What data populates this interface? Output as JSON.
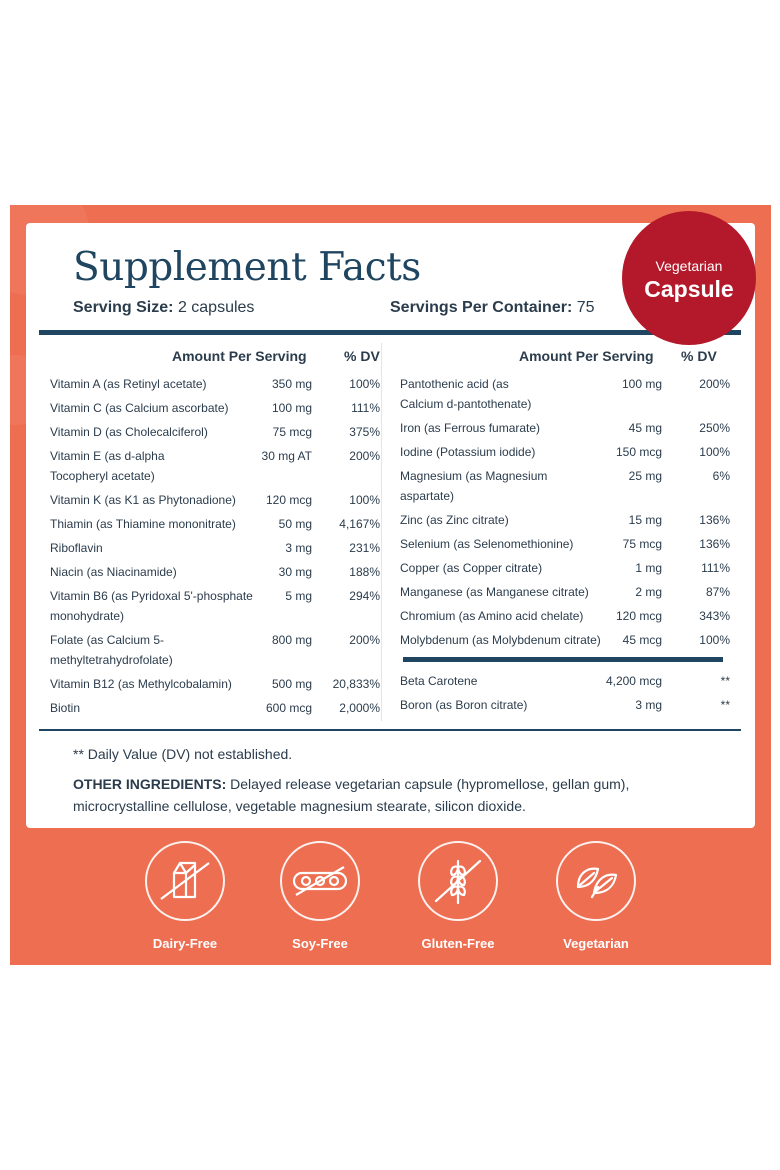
{
  "title": "Supplement Facts",
  "serving_size": {
    "label": "Serving Size:",
    "value": "2 capsules"
  },
  "servings_per_container": {
    "label": "Servings Per Container:",
    "value": "75"
  },
  "badge": {
    "line1": "Vegetarian",
    "line2": "Capsule"
  },
  "headers": {
    "amount": "Amount Per Serving",
    "dv": "% DV"
  },
  "left_rows": [
    {
      "name": "Vitamin A (as Retinyl acetate)",
      "amount": "350 mg",
      "dv": "100%"
    },
    {
      "name": "Vitamin C (as Calcium ascorbate)",
      "amount": "100 mg",
      "dv": "111%"
    },
    {
      "name": "Vitamin D (as Cholecalciferol)",
      "amount": "75 mcg",
      "dv": "375%"
    },
    {
      "name": "Vitamin E (as d-alpha",
      "name2": "Tocopheryl acetate)",
      "amount": "30 mg AT",
      "dv": "200%"
    },
    {
      "name": "Vitamin K (as K1 as Phytonadione)",
      "amount": "120 mcg",
      "dv": "100%"
    },
    {
      "name": "Thiamin (as Thiamine mononitrate)",
      "amount": "50 mg",
      "dv": "4,167%"
    },
    {
      "name": "Riboflavin",
      "amount": "3 mg",
      "dv": "231%"
    },
    {
      "name": "Niacin (as Niacinamide)",
      "amount": "30 mg",
      "dv": "188%"
    },
    {
      "name": "Vitamin B6 (as Pyridoxal 5'-phosphate",
      "name2": "monohydrate)",
      "amount": "5 mg",
      "dv": "294%"
    },
    {
      "name": "Folate (as Calcium 5-",
      "name2": "methyltetrahydrofolate)",
      "amount": "800 mg",
      "dv": "200%"
    },
    {
      "name": "Vitamin B12 (as Methylcobalamin)",
      "amount": "500 mg",
      "dv": "20,833%"
    },
    {
      "name": "Biotin",
      "amount": "600 mcg",
      "dv": "2,000%"
    }
  ],
  "right_rows": [
    {
      "name": "Pantothenic acid (as",
      "name2": "Calcium d-pantothenate)",
      "amount": "100 mg",
      "dv": "200%"
    },
    {
      "name": "Iron (as Ferrous fumarate)",
      "amount": "45 mg",
      "dv": "250%"
    },
    {
      "name": "Iodine (Potassium iodide)",
      "amount": "150 mcg",
      "dv": "100%"
    },
    {
      "name": "Magnesium (as Magnesium",
      "name2": "aspartate)",
      "amount": "25 mg",
      "dv": "6%"
    },
    {
      "name": "Zinc (as Zinc citrate)",
      "amount": "15 mg",
      "dv": "136%"
    },
    {
      "name": "Selenium (as Selenomethionine)",
      "amount": "75 mcg",
      "dv": "136%"
    },
    {
      "name": "Copper (as Copper citrate)",
      "amount": "1 mg",
      "dv": "111%"
    },
    {
      "name": "Manganese (as Manganese citrate)",
      "amount": "2 mg",
      "dv": "87%"
    },
    {
      "name": "Chromium (as Amino acid chelate)",
      "amount": "120 mcg",
      "dv": "343%"
    },
    {
      "name": "Molybdenum (as Molybdenum citrate)",
      "amount": "45 mcg",
      "dv": "100%"
    }
  ],
  "right_extra_rows": [
    {
      "name": "Beta Carotene",
      "amount": "4,200 mcg",
      "dv": "**"
    },
    {
      "name": "Boron (as Boron citrate)",
      "amount": "3 mg",
      "dv": "**"
    }
  ],
  "dv_note": "** Daily Value (DV) not established.",
  "other_ingredients": {
    "label": "OTHER INGREDIENTS:",
    "text": " Delayed release vegetarian capsule (hypromellose, gellan gum), microcrystalline cellulose, vegetable magnesium stearate, silicon dioxide."
  },
  "badges": [
    {
      "label": "Dairy-Free",
      "icon": "milk-carton-crossed-icon"
    },
    {
      "label": "Soy-Free",
      "icon": "soybean-crossed-icon"
    },
    {
      "label": "Gluten-Free",
      "icon": "wheat-crossed-icon"
    },
    {
      "label": "Vegetarian",
      "icon": "leaf-icon"
    }
  ],
  "colors": {
    "panel": "#ee6e52",
    "navy": "#1f4560",
    "badge": "#b3192a"
  }
}
